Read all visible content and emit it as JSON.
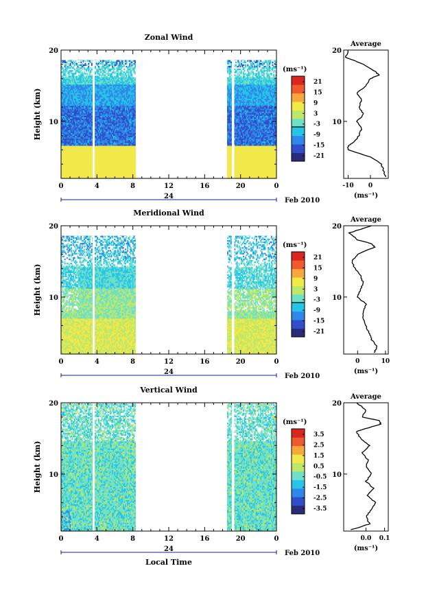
{
  "chart_data": [
    {
      "type": "heatmap",
      "title": "Zonal Wind",
      "ylabel": "Height (km)",
      "ylim": [
        2,
        20
      ],
      "yticks": [
        "10",
        "20"
      ],
      "xlim": [
        0,
        24
      ],
      "xticks": [
        "0",
        "4",
        "8",
        "12",
        "16",
        "20",
        "0"
      ],
      "date_marker": "24",
      "date_label": "Feb 2010",
      "colorbar_unit": "(ms⁻¹)",
      "colorbar_ticks": [
        "21",
        "15",
        "9",
        "3",
        "-3",
        "-9",
        "-15",
        "-21"
      ],
      "data_gaps": [
        [
          3.5,
          3.75
        ],
        [
          8.3,
          18.5
        ],
        [
          19.0,
          19.3
        ]
      ],
      "profile": {
        "title": "Average",
        "xlabel": "(ms⁻¹)",
        "xticks": [
          "-10",
          "0"
        ],
        "xlim": [
          -12,
          8
        ],
        "yticks": [
          "10",
          "20"
        ],
        "heights": [
          2.2,
          3,
          4,
          5,
          6,
          6.5,
          7,
          8,
          9,
          10,
          11,
          12,
          13,
          14,
          15,
          16,
          16.5,
          17,
          18,
          19,
          20
        ],
        "values": [
          7,
          6,
          5,
          0,
          -10,
          -10,
          -8,
          -5,
          -4,
          -6,
          -3,
          -5,
          -4,
          -6,
          -2,
          0,
          4,
          2,
          -3,
          -11,
          -10
        ]
      }
    },
    {
      "type": "heatmap",
      "title": "Meridional Wind",
      "ylabel": "Height (km)",
      "ylim": [
        2,
        20
      ],
      "yticks": [
        "10",
        "20"
      ],
      "xlim": [
        0,
        24
      ],
      "xticks": [
        "0",
        "4",
        "8",
        "12",
        "16",
        "20",
        "0"
      ],
      "date_marker": "24",
      "date_label": "Feb 2010",
      "colorbar_unit": "(ms⁻¹)",
      "colorbar_ticks": [
        "21",
        "15",
        "9",
        "3",
        "-3",
        "-9",
        "-15",
        "-21"
      ],
      "data_gaps": [
        [
          3.5,
          3.75
        ],
        [
          8.3,
          18.5
        ],
        [
          19.0,
          19.3
        ]
      ],
      "profile": {
        "title": "Average",
        "xlabel": "(ms⁻¹)",
        "xticks": [
          "0",
          "10"
        ],
        "xlim": [
          -5,
          11
        ],
        "yticks": [
          "10",
          "20"
        ],
        "heights": [
          2.2,
          3,
          4,
          5,
          6,
          7,
          8,
          9,
          10,
          11,
          12,
          13,
          14,
          15,
          16,
          17,
          17.5,
          18,
          19,
          20
        ],
        "values": [
          6,
          7,
          5,
          4,
          3,
          2,
          2,
          3,
          0,
          1,
          2,
          1,
          -1,
          -2,
          0,
          6,
          5,
          0,
          -3,
          5
        ]
      }
    },
    {
      "type": "heatmap",
      "title": "Vertical Wind",
      "xlabel": "Local Time",
      "ylabel": "Height (km)",
      "ylim": [
        2,
        20
      ],
      "yticks": [
        "10",
        "20"
      ],
      "xlim": [
        0,
        24
      ],
      "xticks": [
        "0",
        "4",
        "8",
        "12",
        "16",
        "20",
        "0"
      ],
      "date_marker": "24",
      "date_label": "Feb 2010",
      "colorbar_unit": "(ms⁻¹)",
      "colorbar_ticks": [
        "3.5",
        "2.5",
        "1.5",
        "0.5",
        "-0.5",
        "-1.5",
        "-2.5",
        "-3.5"
      ],
      "data_gaps": [
        [
          3.5,
          3.75
        ],
        [
          8.3,
          18.5
        ],
        [
          19.0,
          19.3
        ]
      ],
      "profile": {
        "title": "Average",
        "xlabel": "(ms⁻¹)",
        "xticks": [
          "0.0",
          "0.1"
        ],
        "xlim": [
          -0.12,
          0.12
        ],
        "yticks": [
          "10",
          "20"
        ],
        "heights": [
          2.2,
          3,
          4,
          5,
          6,
          7,
          8,
          9,
          10,
          11,
          12,
          13,
          14,
          15,
          16,
          17,
          17.5,
          18,
          19,
          20
        ],
        "values": [
          -0.08,
          0.02,
          0.0,
          0.03,
          0.05,
          0.01,
          0.04,
          0.0,
          0.03,
          0.0,
          0.01,
          -0.02,
          0.02,
          -0.03,
          -0.05,
          0.08,
          0.07,
          -0.02,
          0.0,
          -0.05
        ]
      }
    }
  ],
  "colors": {
    "colormap": [
      "#2b2b7a",
      "#2e4fc9",
      "#2f87e8",
      "#26c4e8",
      "#6ee0c8",
      "#bde86a",
      "#f2e84a",
      "#f6a83c",
      "#ee5a2e",
      "#d9261f"
    ]
  }
}
